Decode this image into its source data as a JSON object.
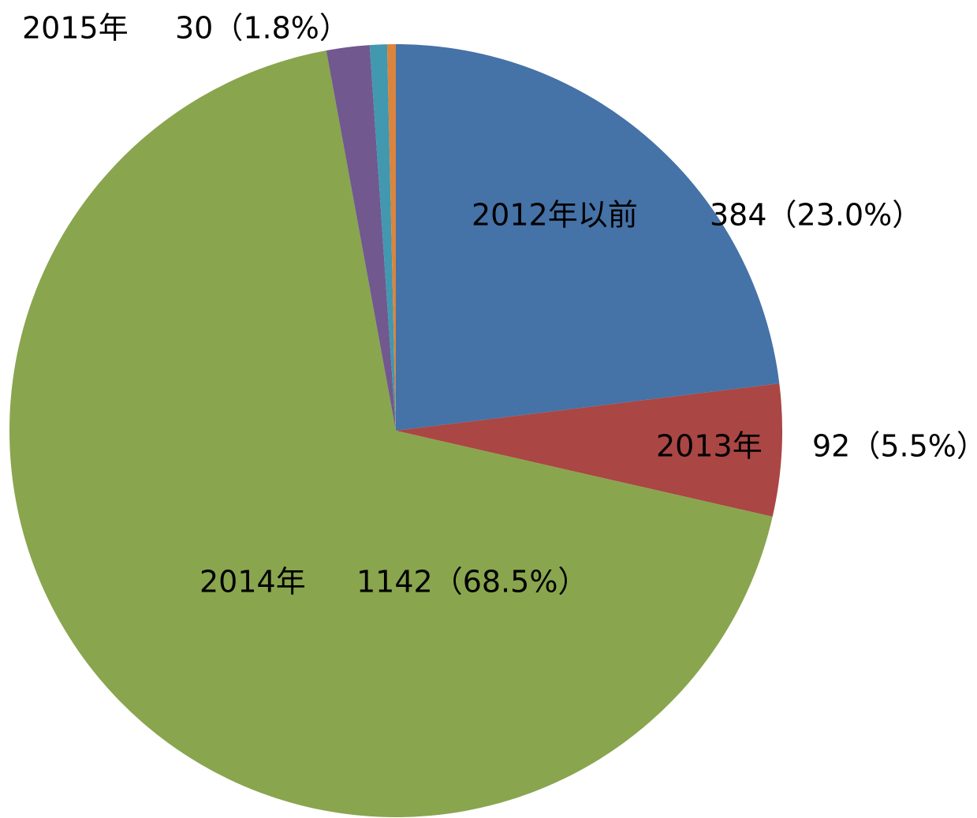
{
  "chart_data": {
    "type": "pie",
    "categories": [
      "2012年以前",
      "2013年",
      "2014年",
      "2015年",
      null,
      null
    ],
    "values": [
      384,
      92,
      1142,
      30,
      12,
      6
    ],
    "value_labels": [
      "384（23.0%）",
      "92（5.5%）",
      "1142（68.5%）",
      "30（1.8%）",
      null,
      null
    ],
    "colors": [
      "#4572a7",
      "#aa4643",
      "#89a54e",
      "#71588f",
      "#4198af",
      "#db843d"
    ]
  }
}
